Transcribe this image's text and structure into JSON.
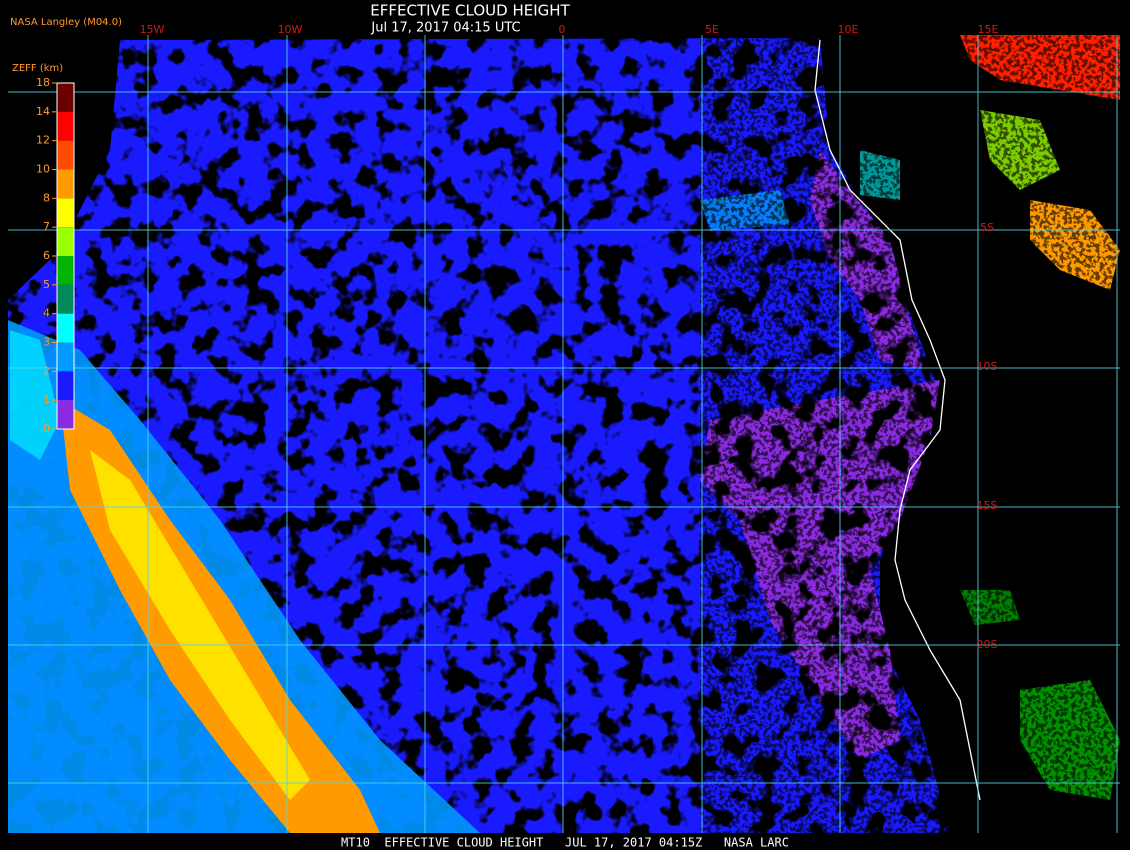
{
  "header": {
    "title": "EFFECTIVE CLOUD HEIGHT",
    "subtitle": "Jul 17, 2017 04:15 UTC",
    "source": "NASA Langley (M04.0)"
  },
  "legend": {
    "title": "ZEFF (km)",
    "ticks": [
      18,
      14,
      12,
      10,
      8,
      7,
      6,
      5,
      4,
      3,
      2,
      1,
      0
    ],
    "colors": [
      "#6b0000",
      "#ff0000",
      "#ff4a00",
      "#ff9a00",
      "#ffff00",
      "#9cff00",
      "#00b400",
      "#008a5a",
      "#00ffff",
      "#0099ff",
      "#1a1aff",
      "#8a2be2"
    ]
  },
  "map": {
    "longitude_labels": [
      "15W",
      "10W",
      "0",
      "5E",
      "10E",
      "15E"
    ],
    "latitude_labels": [
      "5S",
      "10S",
      "15S",
      "20S"
    ]
  },
  "footer": "MT10  EFFECTIVE CLOUD HEIGHT   JUL 17, 2017 04:15Z   NASA LARC"
}
